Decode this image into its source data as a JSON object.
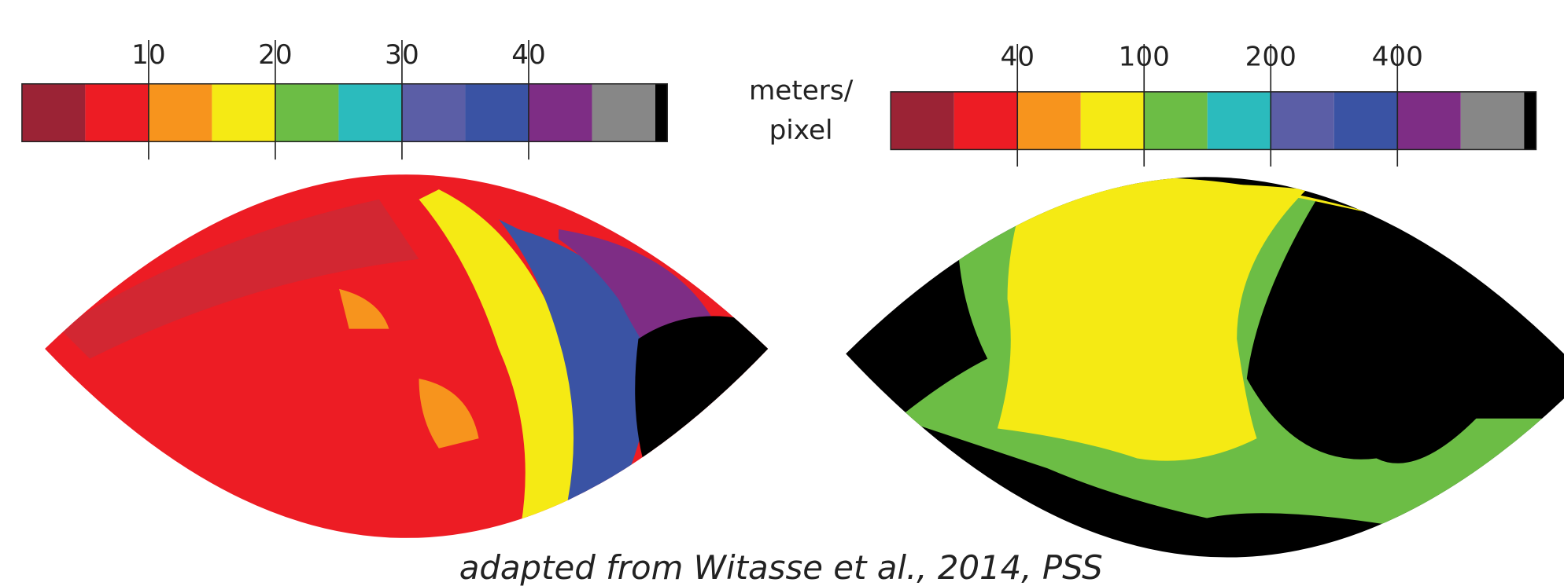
{
  "left_colorbar": {
    "ticks": [
      10,
      20,
      30,
      40
    ],
    "colors": [
      "#9b2335",
      "#ed1c24",
      "#f7941d",
      "#f5ea14",
      "#6cbd45",
      "#2bbbbd",
      "#5b5ea6",
      "#3a53a4",
      "#7e2d85",
      "#878787",
      "#000000"
    ]
  },
  "right_colorbar": {
    "ticks": [
      40,
      100,
      200,
      400
    ],
    "colors": [
      "#9b2335",
      "#ed1c24",
      "#f7941d",
      "#f5ea14",
      "#6cbd45",
      "#2bbbbd",
      "#5b5ea6",
      "#3a53a4",
      "#7e2d85",
      "#878787",
      "#000000"
    ]
  },
  "unit_label": [
    "meters/",
    "pixel"
  ],
  "caption": "adapted from Witasse et al., 2014, PSS"
}
